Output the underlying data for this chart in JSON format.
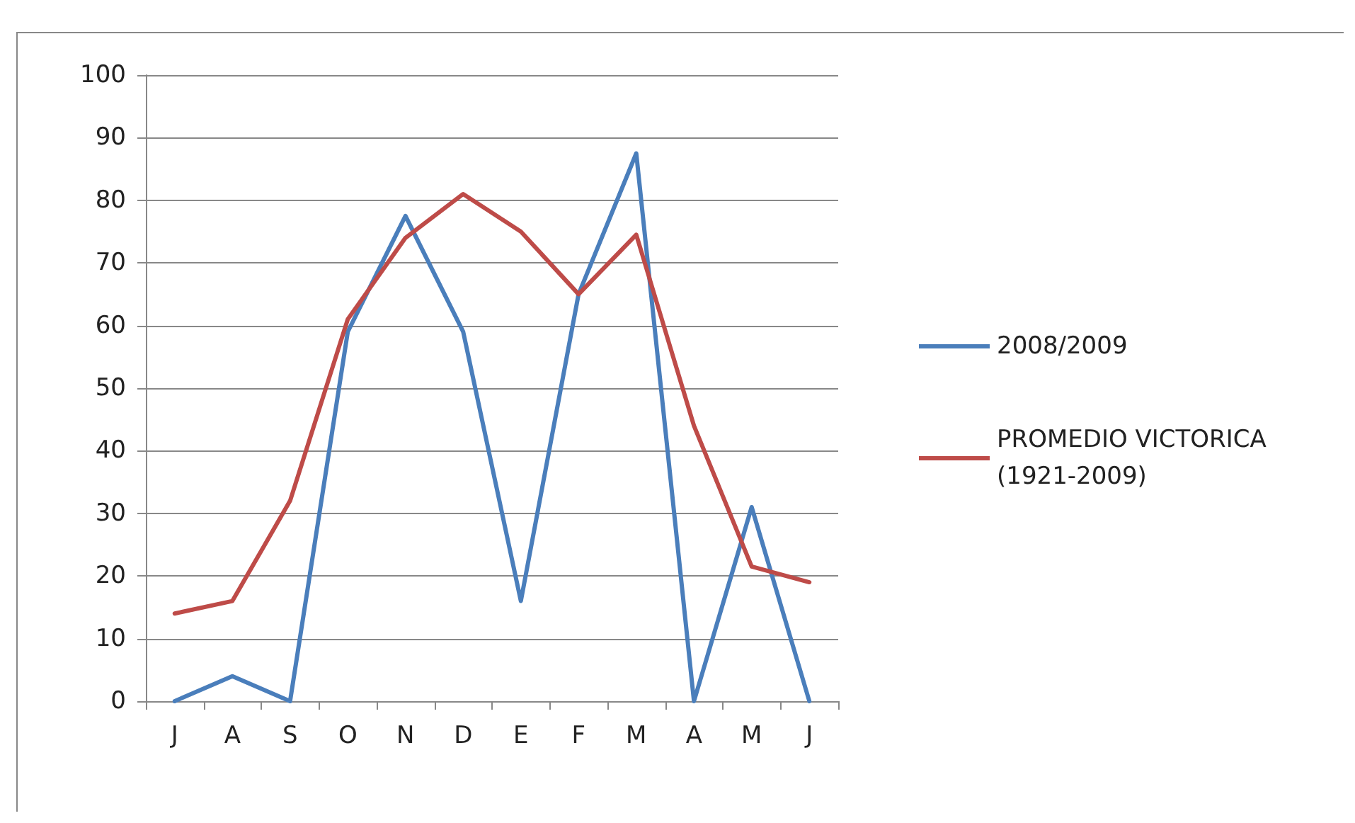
{
  "chart_data": {
    "type": "line",
    "categories": [
      "J",
      "A",
      "S",
      "O",
      "N",
      "D",
      "E",
      "F",
      "M",
      "A",
      "M",
      "J"
    ],
    "series": [
      {
        "name": "2008/2009",
        "color": "#4a7ebb",
        "values": [
          0,
          4,
          0,
          59,
          77.5,
          59,
          16,
          65,
          87.5,
          0,
          31,
          0
        ]
      },
      {
        "name": "PROMEDIO VICTORICA\n(1921-2009)",
        "color": "#be4b48",
        "values": [
          14,
          16,
          32,
          61,
          74,
          81,
          75,
          65,
          74.5,
          44,
          21.5,
          19
        ]
      }
    ],
    "ylim": [
      0,
      100
    ],
    "yticks": [
      0,
      10,
      20,
      30,
      40,
      50,
      60,
      70,
      80,
      90,
      100
    ],
    "grid": "y",
    "legend": "right",
    "marker": "none",
    "line_style": "solid"
  }
}
